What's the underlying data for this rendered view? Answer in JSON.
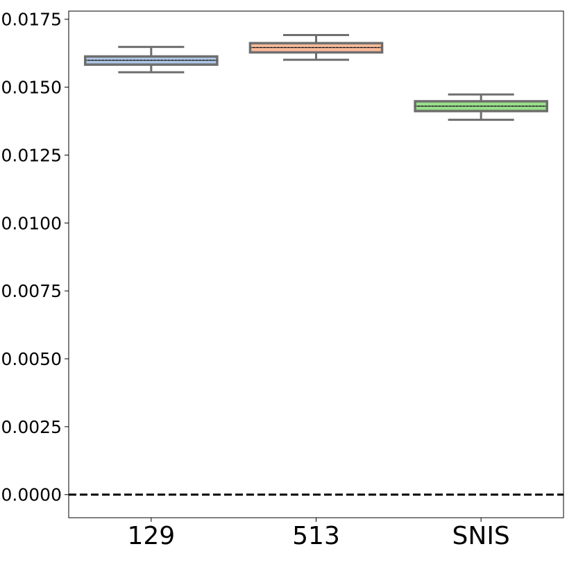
{
  "chart_data": {
    "type": "box",
    "categories": [
      "129",
      "513",
      "SNIS"
    ],
    "boxes": [
      {
        "category": "129",
        "whisker_low": 0.01555,
        "q1": 0.01583,
        "median": 0.01599,
        "mean": 0.01599,
        "q3": 0.01613,
        "whisker_high": 0.01648,
        "color": "#aec7e8"
      },
      {
        "category": "513",
        "whisker_low": 0.01601,
        "q1": 0.01628,
        "median": 0.01646,
        "mean": 0.01646,
        "q3": 0.01662,
        "whisker_high": 0.01692,
        "color": "#ffbb99"
      },
      {
        "category": "SNIS",
        "whisker_low": 0.0138,
        "q1": 0.01412,
        "median": 0.0143,
        "mean": 0.0143,
        "q3": 0.01448,
        "whisker_high": 0.01473,
        "color": "#98df8a"
      }
    ],
    "reference_line": {
      "y": 0.0,
      "style": "dashed",
      "color": "#000000"
    },
    "ylim": [
      -0.00085,
      0.0178
    ],
    "yticks": [
      0.0,
      0.0025,
      0.005,
      0.0075,
      0.01,
      0.0125,
      0.015,
      0.0175
    ],
    "ytick_labels": [
      "0.0000",
      "0.0025",
      "0.0050",
      "0.0075",
      "0.0100",
      "0.0125",
      "0.0150",
      "0.0175"
    ],
    "title": "",
    "xlabel": "",
    "ylabel": "",
    "grid": false,
    "box_edge_color": "#6e6e6e",
    "mean_line_style": "dashed"
  }
}
